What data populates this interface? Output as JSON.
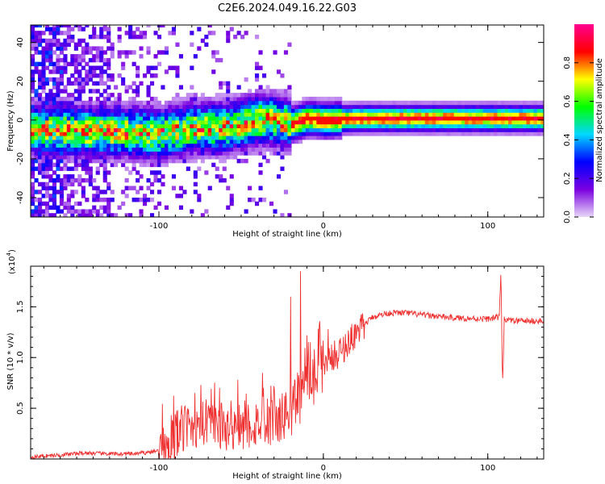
{
  "title": "C2E6.2024.049.16.22.G03",
  "chart_data": [
    {
      "type": "heatmap",
      "xlabel": "Height of straight line (km)",
      "ylabel": "Frequency (Hz)",
      "xlim": [
        -178,
        134
      ],
      "ylim": [
        -50,
        49
      ],
      "xticks": [
        -100,
        0,
        100
      ],
      "xtick_labels": [
        "-100",
        "0",
        "100"
      ],
      "yticks": [
        -40,
        -20,
        0,
        20,
        40
      ],
      "ytick_labels": [
        "-40",
        "-20",
        "0",
        "20",
        "40"
      ],
      "colorbar": {
        "label": "Normalized spectral amplitude",
        "range": [
          0.0,
          1.0
        ],
        "ticks": [
          0.0,
          0.2,
          0.4,
          0.6,
          0.8
        ],
        "tick_labels": [
          "0.0",
          "0.2",
          "0.4",
          "0.6",
          "0.8"
        ],
        "colors": [
          "#e8d8f8",
          "#7a00e0",
          "#0000ff",
          "#00d8ff",
          "#00ff00",
          "#ffff00",
          "#ff0000",
          "#ff0090"
        ]
      },
      "ridge": {
        "x": [
          -160,
          -140,
          -120,
          -100,
          -80,
          -60,
          -40,
          -30,
          -20,
          -10,
          0,
          20,
          60,
          100,
          134
        ],
        "y": [
          -6,
          -7,
          -7,
          -8,
          -5,
          -5,
          -1,
          -1,
          -3,
          0,
          -1,
          0,
          0,
          0,
          0
        ]
      },
      "grid": false
    },
    {
      "type": "line",
      "xlabel": "Height of straight line (km)",
      "ylabel": "SNR (10 * v/v)",
      "y_multiplier": "(x10",
      "y_multiplier_exp": "4",
      "y_multiplier_close": ")",
      "xlim": [
        -178,
        134
      ],
      "ylim": [
        0,
        1.9
      ],
      "xticks": [
        -100,
        0,
        100
      ],
      "xtick_labels": [
        "-100",
        "0",
        "100"
      ],
      "yticks": [
        0.5,
        1.0,
        1.5
      ],
      "ytick_labels": [
        "0.5",
        "1.0",
        "1.5"
      ],
      "line_color": "#ee3030",
      "series": [
        {
          "x": [
            -178,
            -160,
            -145,
            -130,
            -115,
            -100,
            -95,
            -85,
            -75,
            -65,
            -55,
            -45,
            -35,
            -25,
            -18,
            -10,
            -5,
            0,
            10,
            20,
            30,
            40,
            50,
            60,
            80,
            100,
            107,
            108,
            109,
            110,
            115,
            134
          ],
          "y": [
            0.02,
            0.04,
            0.06,
            0.05,
            0.05,
            0.08,
            0.18,
            0.3,
            0.35,
            0.33,
            0.32,
            0.34,
            0.38,
            0.4,
            0.55,
            0.75,
            0.85,
            0.95,
            1.05,
            1.25,
            1.4,
            1.44,
            1.44,
            1.42,
            1.39,
            1.38,
            1.4,
            1.88,
            0.7,
            1.38,
            1.36,
            1.36
          ],
          "spikes": [
            {
              "x": -78,
              "y": 0.65
            },
            {
              "x": -63,
              "y": 0.7
            },
            {
              "x": -52,
              "y": 0.78
            },
            {
              "x": -37,
              "y": 0.85
            },
            {
              "x": -20,
              "y": 1.6
            },
            {
              "x": -14,
              "y": 1.85
            },
            {
              "x": -8,
              "y": 1.15
            },
            {
              "x": 3,
              "y": 1.28
            }
          ]
        }
      ],
      "grid": false
    }
  ]
}
